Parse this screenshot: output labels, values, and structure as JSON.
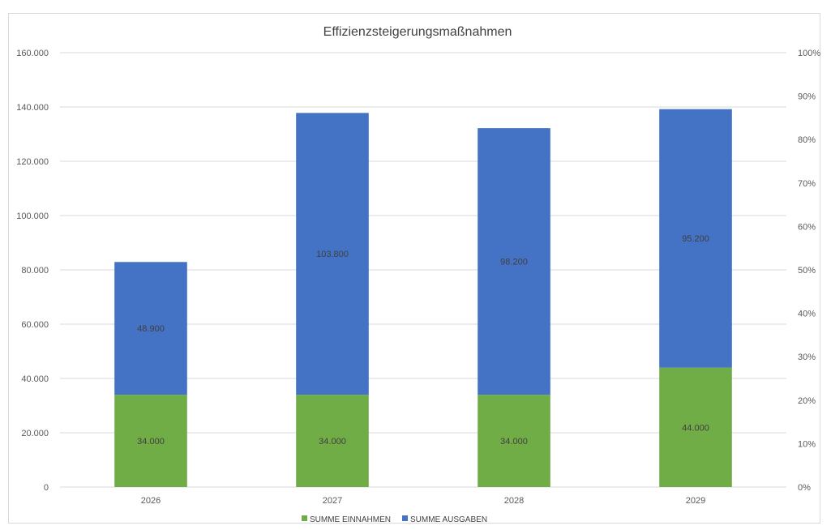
{
  "chart_data": {
    "type": "bar",
    "stacked": true,
    "title": "Effizienzsteigerungsmaßnahmen",
    "categories": [
      "2026",
      "2027",
      "2028",
      "2029"
    ],
    "series": [
      {
        "name": "SUMME EINNAHMEN",
        "color": "#70ad47",
        "values": [
          34000,
          34000,
          34000,
          44000
        ],
        "labels": [
          "34.000",
          "34.000",
          "34.000",
          "44.000"
        ]
      },
      {
        "name": "SUMME AUSGABEN",
        "color": "#4472c4",
        "values": [
          48900,
          103800,
          98200,
          95200
        ],
        "labels": [
          "48.900",
          "103.800",
          "98.200",
          "95.200"
        ]
      }
    ],
    "ylim": [
      0,
      160000
    ],
    "y_ticks": [
      "0",
      "20.000",
      "40.000",
      "60.000",
      "80.000",
      "100.000",
      "120.000",
      "140.000",
      "160.000"
    ],
    "y2lim": [
      0,
      1
    ],
    "y2_ticks": [
      "0%",
      "10%",
      "20%",
      "30%",
      "40%",
      "50%",
      "60%",
      "70%",
      "80%",
      "90%",
      "100%"
    ],
    "grid": true,
    "legend_position": "bottom"
  }
}
